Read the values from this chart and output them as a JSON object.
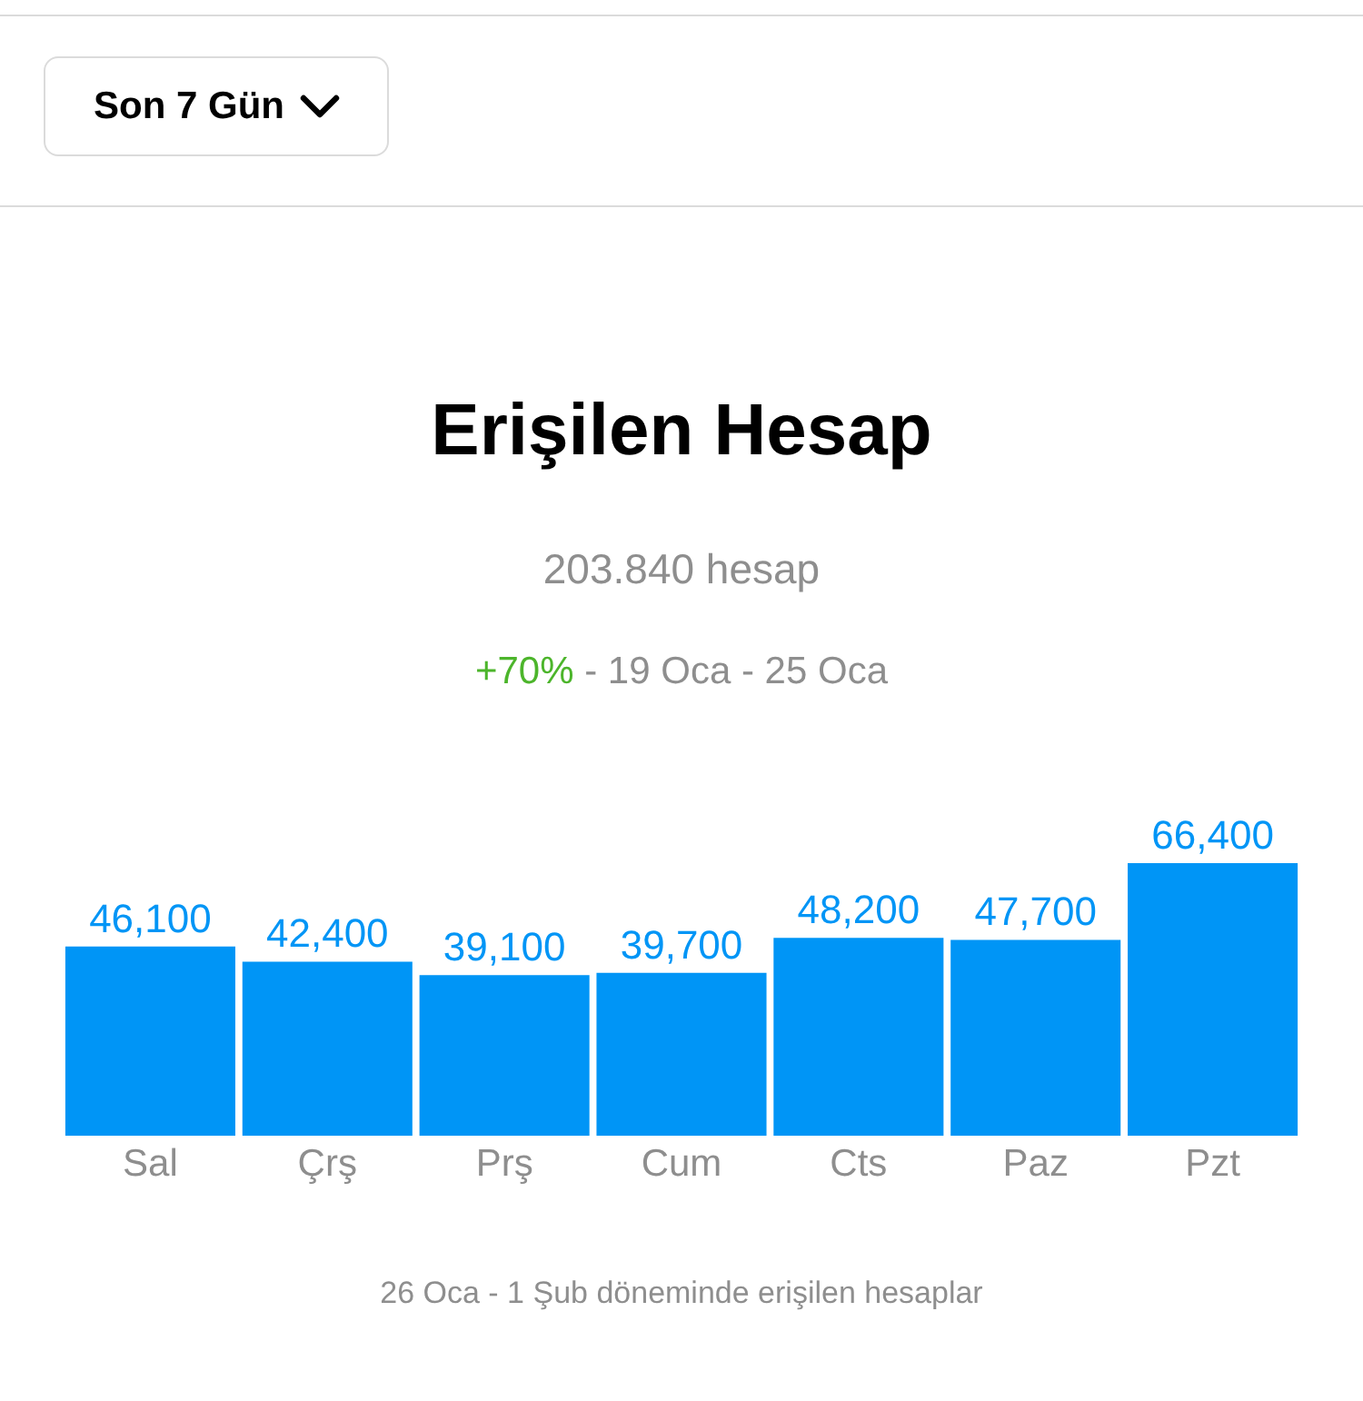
{
  "chart_data": {
    "type": "bar",
    "title": "Erişilen Hesap",
    "subtitle": "203.840 hesap",
    "annotations": [
      "Son 7 Gün",
      "+70% - 19 Oca - 25 Oca",
      "26 Oca - 1 Şub döneminde erişilen hesaplar"
    ],
    "categories": [
      "Sal",
      "Çrş",
      "Prş",
      "Cum",
      "Cts",
      "Paz",
      "Pzt"
    ],
    "values": [
      46100,
      42400,
      39100,
      39700,
      48200,
      47700,
      66400
    ],
    "value_labels": [
      "46,100",
      "42,400",
      "39,100",
      "39,700",
      "48,200",
      "47,700",
      "66,400"
    ],
    "color": "#0095f6",
    "grid": false,
    "legend": false
  }
}
